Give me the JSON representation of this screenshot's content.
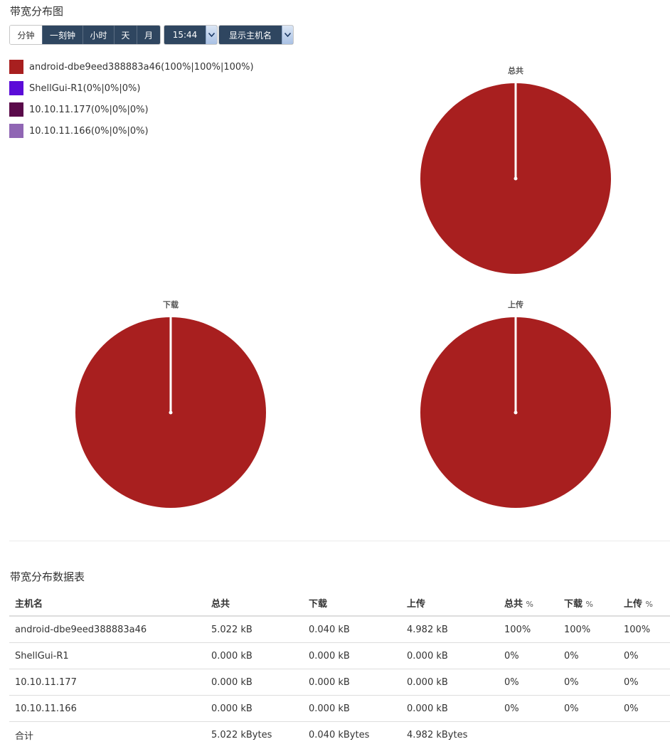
{
  "header": {
    "title": "带宽分布图"
  },
  "toolbar": {
    "periods": [
      "分钟",
      "一刻钟",
      "小时",
      "天",
      "月"
    ],
    "active_period": 0,
    "time_value": "15:44",
    "display_mode": "显示主机名"
  },
  "legend": [
    {
      "label": "android-dbe9eed388883a46(100%|100%|100%)",
      "color": "#a81f1f"
    },
    {
      "label": "ShellGui-R1(0%|0%|0%)",
      "color": "#5b0cd8"
    },
    {
      "label": "10.10.11.177(0%|0%|0%)",
      "color": "#5a0a4a"
    },
    {
      "label": "10.10.11.166(0%|0%|0%)",
      "color": "#9066b4"
    }
  ],
  "charts": {
    "total": {
      "title": "总共",
      "chart_data": {
        "type": "pie",
        "title": "总共",
        "categories": [
          "android-dbe9eed388883a46",
          "ShellGui-R1",
          "10.10.11.177",
          "10.10.11.166"
        ],
        "values": [
          100,
          0,
          0,
          0
        ],
        "colors": [
          "#a81f1f",
          "#5b0cd8",
          "#5a0a4a",
          "#9066b4"
        ]
      }
    },
    "download": {
      "title": "下载",
      "chart_data": {
        "type": "pie",
        "title": "下载",
        "categories": [
          "android-dbe9eed388883a46",
          "ShellGui-R1",
          "10.10.11.177",
          "10.10.11.166"
        ],
        "values": [
          100,
          0,
          0,
          0
        ],
        "colors": [
          "#a81f1f",
          "#5b0cd8",
          "#5a0a4a",
          "#9066b4"
        ]
      }
    },
    "upload": {
      "title": "上传",
      "chart_data": {
        "type": "pie",
        "title": "上传",
        "categories": [
          "android-dbe9eed388883a46",
          "ShellGui-R1",
          "10.10.11.177",
          "10.10.11.166"
        ],
        "values": [
          100,
          0,
          0,
          0
        ],
        "colors": [
          "#a81f1f",
          "#5b0cd8",
          "#5a0a4a",
          "#9066b4"
        ]
      }
    }
  },
  "table": {
    "title": "带宽分布数据表",
    "headers": {
      "host": "主机名",
      "total": "总共",
      "download": "下载",
      "upload": "上传",
      "total_pct": "总共",
      "download_pct": "下载",
      "upload_pct": "上传",
      "pct_symbol": "%"
    },
    "rows": [
      {
        "host": "android-dbe9eed388883a46",
        "total": "5.022 kB",
        "download": "0.040 kB",
        "upload": "4.982 kB",
        "total_pct": "100%",
        "download_pct": "100%",
        "upload_pct": "100%"
      },
      {
        "host": "ShellGui-R1",
        "total": "0.000 kB",
        "download": "0.000 kB",
        "upload": "0.000 kB",
        "total_pct": "0%",
        "download_pct": "0%",
        "upload_pct": "0%"
      },
      {
        "host": "10.10.11.177",
        "total": "0.000 kB",
        "download": "0.000 kB",
        "upload": "0.000 kB",
        "total_pct": "0%",
        "download_pct": "0%",
        "upload_pct": "0%"
      },
      {
        "host": "10.10.11.166",
        "total": "0.000 kB",
        "download": "0.000 kB",
        "upload": "0.000 kB",
        "total_pct": "0%",
        "download_pct": "0%",
        "upload_pct": "0%"
      }
    ],
    "total_row": {
      "label": "合计",
      "total": "5.022 kBytes",
      "download": "0.040 kBytes",
      "upload": "4.982 kBytes"
    }
  }
}
